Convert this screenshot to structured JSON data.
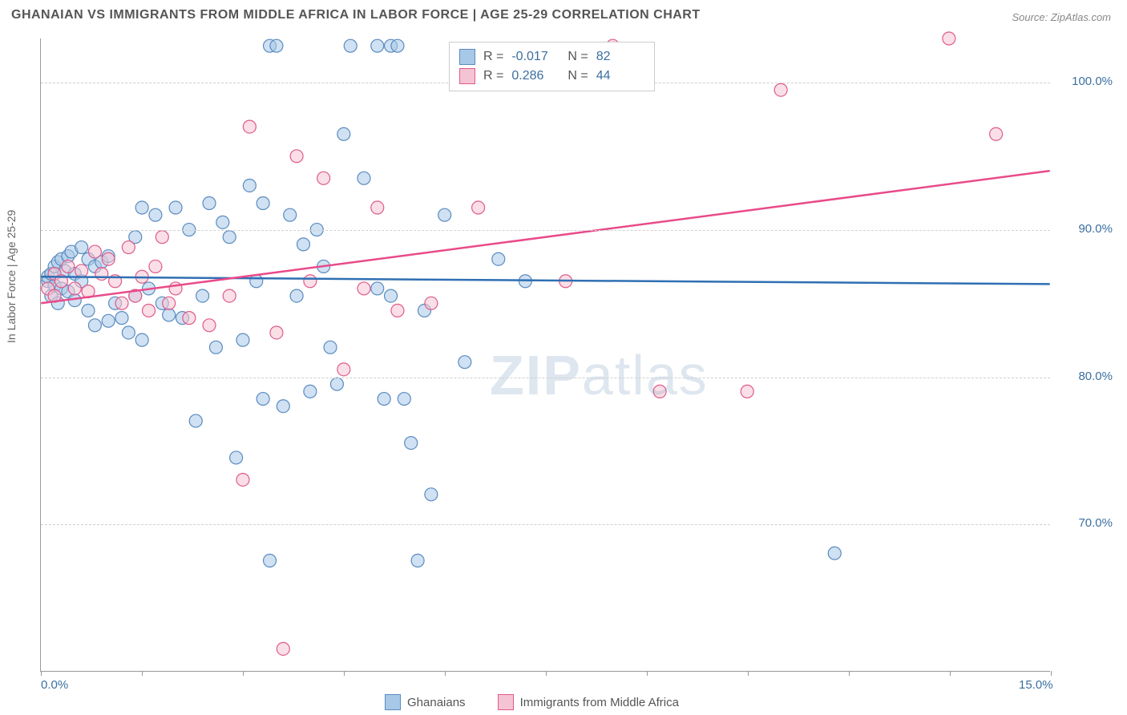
{
  "title": "GHANAIAN VS IMMIGRANTS FROM MIDDLE AFRICA IN LABOR FORCE | AGE 25-29 CORRELATION CHART",
  "source": "Source: ZipAtlas.com",
  "watermark_a": "ZIP",
  "watermark_b": "atlas",
  "y_axis_label": "In Labor Force | Age 25-29",
  "chart": {
    "type": "scatter",
    "xlim": [
      0,
      15
    ],
    "ylim": [
      60,
      103
    ],
    "x_ticks": [
      0,
      1.5,
      3.0,
      4.5,
      6.0,
      7.5,
      9.0,
      10.5,
      12.0,
      13.5,
      15.0
    ],
    "x_tick_labels": {
      "0": "0.0%",
      "15": "15.0%"
    },
    "y_ticks": [
      70,
      80,
      90,
      100
    ],
    "y_tick_labels": {
      "70": "70.0%",
      "80": "80.0%",
      "90": "90.0%",
      "100": "100.0%"
    },
    "grid_color": "#d0d0d0",
    "background_color": "#ffffff",
    "marker_radius": 8,
    "marker_stroke_width": 1.2,
    "trend_line_width": 2.5,
    "series": [
      {
        "name": "Ghanaians",
        "label": "Ghanaians",
        "R": "-0.017",
        "N": "82",
        "fill": "#a8c8e8",
        "stroke": "#5a8bc0",
        "line_color": "#2f6fb3",
        "trend": {
          "x0": 0,
          "y0": 86.8,
          "x1": 15,
          "y1": 86.3
        },
        "points": [
          [
            0.1,
            86.5
          ],
          [
            0.1,
            86.8
          ],
          [
            0.15,
            87.0
          ],
          [
            0.15,
            85.5
          ],
          [
            0.2,
            86.2
          ],
          [
            0.2,
            87.5
          ],
          [
            0.25,
            85.0
          ],
          [
            0.25,
            87.8
          ],
          [
            0.3,
            88.0
          ],
          [
            0.3,
            86.0
          ],
          [
            0.35,
            87.2
          ],
          [
            0.4,
            88.2
          ],
          [
            0.4,
            85.8
          ],
          [
            0.45,
            88.5
          ],
          [
            0.5,
            87.0
          ],
          [
            0.5,
            85.2
          ],
          [
            0.6,
            88.8
          ],
          [
            0.6,
            86.5
          ],
          [
            0.7,
            84.5
          ],
          [
            0.7,
            88.0
          ],
          [
            0.8,
            87.5
          ],
          [
            0.8,
            83.5
          ],
          [
            0.9,
            87.8
          ],
          [
            1.0,
            83.8
          ],
          [
            1.0,
            88.2
          ],
          [
            1.1,
            85.0
          ],
          [
            1.2,
            84.0
          ],
          [
            1.3,
            83.0
          ],
          [
            1.4,
            89.5
          ],
          [
            1.4,
            85.5
          ],
          [
            1.5,
            91.5
          ],
          [
            1.5,
            82.5
          ],
          [
            1.6,
            86.0
          ],
          [
            1.7,
            91.0
          ],
          [
            1.8,
            85.0
          ],
          [
            1.9,
            84.2
          ],
          [
            2.0,
            91.5
          ],
          [
            2.1,
            84.0
          ],
          [
            2.2,
            90.0
          ],
          [
            2.3,
            77.0
          ],
          [
            2.4,
            85.5
          ],
          [
            2.5,
            91.8
          ],
          [
            2.6,
            82.0
          ],
          [
            2.7,
            90.5
          ],
          [
            2.8,
            89.5
          ],
          [
            2.9,
            74.5
          ],
          [
            3.0,
            82.5
          ],
          [
            3.1,
            93.0
          ],
          [
            3.2,
            86.5
          ],
          [
            3.3,
            78.5
          ],
          [
            3.4,
            67.5
          ],
          [
            3.4,
            102.5
          ],
          [
            3.5,
            102.5
          ],
          [
            3.6,
            78.0
          ],
          [
            3.7,
            91.0
          ],
          [
            3.8,
            85.5
          ],
          [
            3.9,
            89.0
          ],
          [
            4.0,
            79.0
          ],
          [
            4.1,
            90.0
          ],
          [
            4.2,
            87.5
          ],
          [
            4.3,
            82.0
          ],
          [
            4.4,
            79.5
          ],
          [
            4.5,
            96.5
          ],
          [
            4.6,
            102.5
          ],
          [
            4.8,
            93.5
          ],
          [
            5.0,
            102.5
          ],
          [
            5.0,
            86.0
          ],
          [
            5.1,
            78.5
          ],
          [
            5.2,
            102.5
          ],
          [
            5.2,
            85.5
          ],
          [
            5.3,
            102.5
          ],
          [
            5.4,
            78.5
          ],
          [
            5.5,
            75.5
          ],
          [
            5.6,
            67.5
          ],
          [
            5.7,
            84.5
          ],
          [
            5.8,
            72.0
          ],
          [
            6.0,
            91.0
          ],
          [
            6.3,
            81.0
          ],
          [
            6.8,
            88.0
          ],
          [
            7.2,
            86.5
          ],
          [
            11.8,
            68.0
          ],
          [
            3.3,
            91.8
          ]
        ]
      },
      {
        "name": "Immigrants from Middle Africa",
        "label": "Immigrants from Middle Africa",
        "R": "0.286",
        "N": "44",
        "fill": "#f5c4d4",
        "stroke": "#e05a8a",
        "line_color": "#e84b8a",
        "trend": {
          "x0": 0,
          "y0": 85.0,
          "x1": 15,
          "y1": 94.0
        },
        "points": [
          [
            0.1,
            86.0
          ],
          [
            0.2,
            85.5
          ],
          [
            0.2,
            87.0
          ],
          [
            0.3,
            86.5
          ],
          [
            0.4,
            87.5
          ],
          [
            0.5,
            86.0
          ],
          [
            0.6,
            87.2
          ],
          [
            0.7,
            85.8
          ],
          [
            0.8,
            88.5
          ],
          [
            0.9,
            87.0
          ],
          [
            1.0,
            88.0
          ],
          [
            1.1,
            86.5
          ],
          [
            1.2,
            85.0
          ],
          [
            1.3,
            88.8
          ],
          [
            1.4,
            85.5
          ],
          [
            1.5,
            86.8
          ],
          [
            1.6,
            84.5
          ],
          [
            1.7,
            87.5
          ],
          [
            1.8,
            89.5
          ],
          [
            1.9,
            85.0
          ],
          [
            2.0,
            86.0
          ],
          [
            2.2,
            84.0
          ],
          [
            2.5,
            83.5
          ],
          [
            2.8,
            85.5
          ],
          [
            3.0,
            73.0
          ],
          [
            3.1,
            97.0
          ],
          [
            3.5,
            83.0
          ],
          [
            3.6,
            61.5
          ],
          [
            3.8,
            95.0
          ],
          [
            4.0,
            86.5
          ],
          [
            4.2,
            93.5
          ],
          [
            4.5,
            80.5
          ],
          [
            4.8,
            86.0
          ],
          [
            5.0,
            91.5
          ],
          [
            5.3,
            84.5
          ],
          [
            5.8,
            85.0
          ],
          [
            6.5,
            91.5
          ],
          [
            7.8,
            86.5
          ],
          [
            8.5,
            102.5
          ],
          [
            9.2,
            79.0
          ],
          [
            10.5,
            79.0
          ],
          [
            11.0,
            99.5
          ],
          [
            13.5,
            103.0
          ],
          [
            14.2,
            96.5
          ]
        ]
      }
    ]
  },
  "legend_top": {
    "rows": [
      {
        "swatch_fill": "#a8c8e8",
        "swatch_stroke": "#5a8bc0",
        "r_lbl": "R =",
        "r_val": "-0.017",
        "n_lbl": "N =",
        "n_val": "82"
      },
      {
        "swatch_fill": "#f5c4d4",
        "swatch_stroke": "#e05a8a",
        "r_lbl": "R =",
        "r_val": "0.286",
        "n_lbl": "N =",
        "n_val": "44"
      }
    ]
  },
  "legend_bottom": {
    "items": [
      {
        "swatch_fill": "#a8c8e8",
        "swatch_stroke": "#5a8bc0",
        "label": "Ghanaians"
      },
      {
        "swatch_fill": "#f5c4d4",
        "swatch_stroke": "#e05a8a",
        "label": "Immigrants from Middle Africa"
      }
    ]
  }
}
